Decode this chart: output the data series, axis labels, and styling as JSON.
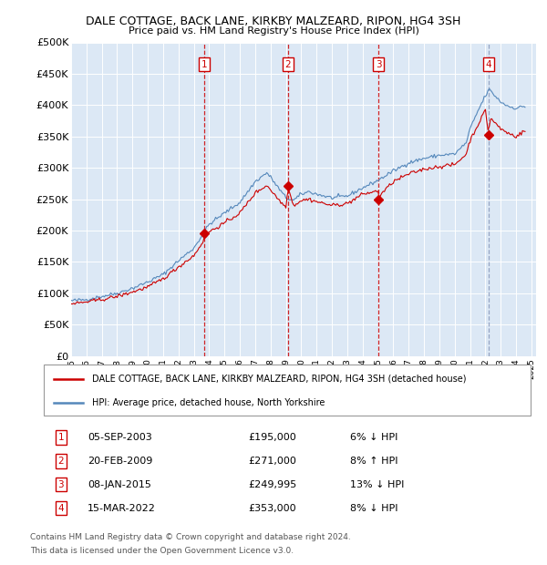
{
  "title": "DALE COTTAGE, BACK LANE, KIRKBY MALZEARD, RIPON, HG4 3SH",
  "subtitle": "Price paid vs. HM Land Registry's House Price Index (HPI)",
  "legend_label_red": "DALE COTTAGE, BACK LANE, KIRKBY MALZEARD, RIPON, HG4 3SH (detached house)",
  "legend_label_blue": "HPI: Average price, detached house, North Yorkshire",
  "footnote1": "Contains HM Land Registry data © Crown copyright and database right 2024.",
  "footnote2": "This data is licensed under the Open Government Licence v3.0.",
  "ylim": [
    0,
    500000
  ],
  "yticks": [
    0,
    50000,
    100000,
    150000,
    200000,
    250000,
    300000,
    350000,
    400000,
    450000,
    500000
  ],
  "ytick_labels": [
    "£0",
    "£50K",
    "£100K",
    "£150K",
    "£200K",
    "£250K",
    "£300K",
    "£350K",
    "£400K",
    "£450K",
    "£500K"
  ],
  "transactions": [
    {
      "num": 1,
      "date": "05-SEP-2003",
      "price": 195000,
      "hpi_diff": "6% ↓ HPI",
      "year_x": 2003.67
    },
    {
      "num": 2,
      "date": "20-FEB-2009",
      "price": 271000,
      "hpi_diff": "8% ↑ HPI",
      "year_x": 2009.13
    },
    {
      "num": 3,
      "date": "08-JAN-2015",
      "price": 249995,
      "hpi_diff": "13% ↓ HPI",
      "year_x": 2015.03
    },
    {
      "num": 4,
      "date": "15-MAR-2022",
      "price": 353000,
      "hpi_diff": "8% ↓ HPI",
      "year_x": 2022.21
    }
  ],
  "red_color": "#cc0000",
  "blue_color": "#5588bb",
  "dashed_red_color": "#cc0000",
  "dashed_blue_color": "#8899bb",
  "plot_bg": "#dce8f5",
  "grid_color": "#ffffff",
  "xtick_years": [
    1995,
    1996,
    1997,
    1998,
    1999,
    2000,
    2001,
    2002,
    2003,
    2004,
    2005,
    2006,
    2007,
    2008,
    2009,
    2010,
    2011,
    2012,
    2013,
    2014,
    2015,
    2016,
    2017,
    2018,
    2019,
    2020,
    2021,
    2022,
    2023,
    2024,
    2025
  ]
}
